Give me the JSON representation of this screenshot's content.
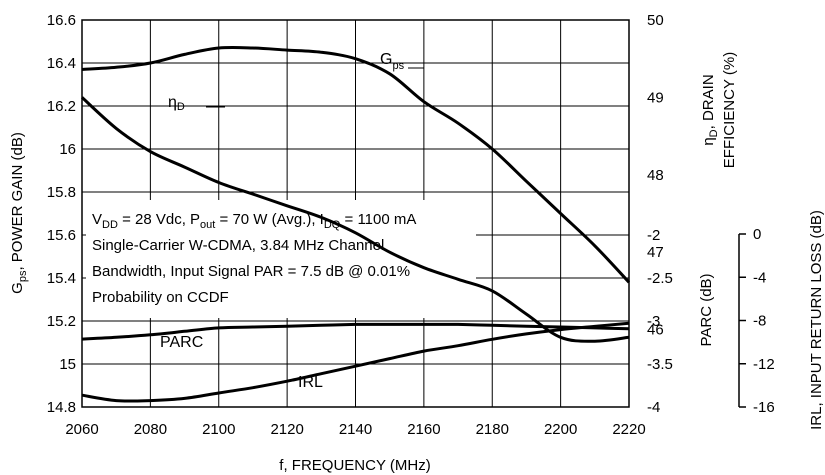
{
  "chart_data": {
    "type": "line",
    "x_axis": {
      "label": "f, FREQUENCY (MHz)",
      "min": 2060,
      "max": 2220,
      "ticks": [
        "2060",
        "2080",
        "2100",
        "2120",
        "2140",
        "2160",
        "2180",
        "2200",
        "2220"
      ]
    },
    "left_axis": {
      "label_main": "G",
      "label_sub": "ps",
      "label_rest": ", POWER GAIN (dB)",
      "min": 14.8,
      "max": 16.6,
      "ticks": [
        "16.6",
        "16.4",
        "16.2",
        "16",
        "15.8",
        "15.6",
        "15.4",
        "15.2",
        "15",
        "14.8"
      ]
    },
    "right_axis_efficiency": {
      "label_line1_main": "η",
      "label_line1_sub": "D",
      "label_line1_rest": ", DRAIN",
      "label_line2": "EFFICIENCY (%)",
      "min": 45,
      "max": 50,
      "ticks": [
        "50",
        "49",
        "48",
        "47",
        "46"
      ]
    },
    "right_axis_parc": {
      "label": "PARC (dB)",
      "min": -4,
      "max": -2,
      "ticks": [
        "-2",
        "-2.5",
        "-3",
        "-3.5",
        "-4"
      ]
    },
    "right_axis_irl": {
      "label": "IRL, INPUT RETURN LOSS (dB)",
      "min": -16,
      "max": 0,
      "ticks": [
        "0",
        "-4",
        "-8",
        "-12",
        "-16"
      ]
    },
    "annotation": {
      "line1": {
        "a": "V",
        "a_sub": "DD",
        "b": " = 28 Vdc, P",
        "b_sub": "out",
        "c": " = 70 W (Avg.), I",
        "c_sub": "DQ",
        "d": " = 1100 mA"
      },
      "line2": "Single-Carrier W-CDMA, 3.84 MHz Channel",
      "line3": "Bandwidth, Input Signal PAR = 7.5 dB @ 0.01%",
      "line4": "Probability on CCDF"
    },
    "series": [
      {
        "name_main": "G",
        "name_sub": "ps",
        "axis": "left",
        "x": [
          2060,
          2070,
          2080,
          2090,
          2100,
          2110,
          2120,
          2130,
          2140,
          2150,
          2160,
          2170,
          2180,
          2190,
          2200,
          2210,
          2220
        ],
        "y": [
          16.37,
          16.38,
          16.4,
          16.44,
          16.47,
          16.47,
          16.46,
          16.45,
          16.42,
          16.35,
          16.22,
          16.12,
          16.0,
          15.85,
          15.7,
          15.55,
          15.38
        ]
      },
      {
        "name_main": "η",
        "name_sub": "D",
        "axis": "efficiency",
        "x": [
          2060,
          2070,
          2080,
          2090,
          2100,
          2110,
          2120,
          2130,
          2140,
          2150,
          2160,
          2170,
          2180,
          2190,
          2200,
          2210,
          2220
        ],
        "y": [
          49.0,
          48.6,
          48.3,
          48.1,
          47.9,
          47.75,
          47.6,
          47.45,
          47.25,
          47.0,
          46.8,
          46.65,
          46.5,
          46.2,
          45.9,
          45.85,
          45.9
        ]
      },
      {
        "name": "PARC",
        "axis": "parc",
        "x": [
          2060,
          2070,
          2080,
          2090,
          2100,
          2110,
          2120,
          2130,
          2140,
          2150,
          2160,
          2170,
          2180,
          2190,
          2200,
          2210,
          2220
        ],
        "y": [
          -3.21,
          -3.19,
          -3.16,
          -3.12,
          -3.08,
          -3.07,
          -3.06,
          -3.05,
          -3.04,
          -3.04,
          -3.04,
          -3.04,
          -3.05,
          -3.06,
          -3.07,
          -3.08,
          -3.09
        ]
      },
      {
        "name": "IRL",
        "axis": "irl",
        "x": [
          2060,
          2070,
          2080,
          2090,
          2100,
          2110,
          2120,
          2130,
          2140,
          2150,
          2160,
          2170,
          2180,
          2190,
          2200,
          2210,
          2220
        ],
        "y": [
          -14.9,
          -15.4,
          -15.4,
          -15.2,
          -14.7,
          -14.2,
          -13.6,
          -12.9,
          -12.2,
          -11.5,
          -10.8,
          -10.3,
          -9.7,
          -9.2,
          -8.8,
          -8.5,
          -8.2
        ]
      }
    ],
    "grid": true,
    "legend": "none (curves labeled inline)"
  }
}
